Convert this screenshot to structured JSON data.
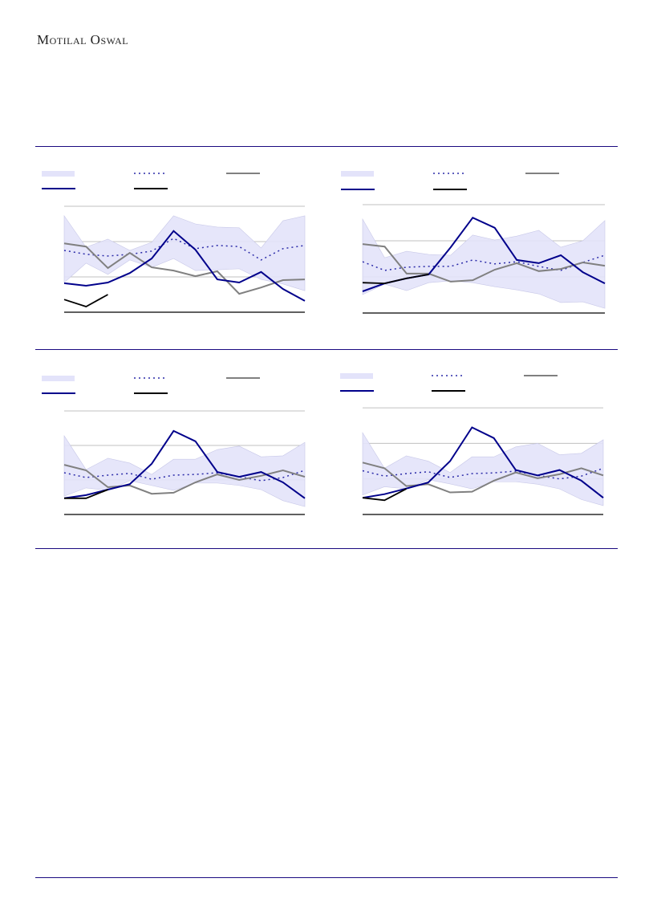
{
  "header": {
    "logo_text": "Motilal Oswal"
  },
  "colors": {
    "rule": "#1a0a80",
    "band": "#e3e3fa",
    "band_edge": "#c8c8e8",
    "navy": "#00008b",
    "dotted": "#2a2aa8",
    "gray": "#808080",
    "black": "#000000",
    "grid": "#c0c0c0"
  },
  "chart_data": [
    {
      "type": "line",
      "x": [
        1,
        2,
        3,
        4,
        5,
        6,
        7,
        8,
        9,
        10,
        11,
        12
      ],
      "ylim": [
        0,
        3
      ],
      "grid": true,
      "legend": "top",
      "band": {
        "upper": [
          2.73,
          1.84,
          2.07,
          1.75,
          1.98,
          2.73,
          2.5,
          2.41,
          2.39,
          1.82,
          2.59,
          2.73
        ],
        "lower": [
          0.84,
          1.39,
          1.07,
          1.48,
          1.27,
          1.52,
          1.18,
          1.2,
          1.23,
          0.93,
          0.8,
          0.61
        ]
      },
      "dotted": [
        1.75,
        1.64,
        1.59,
        1.64,
        1.73,
        2.09,
        1.8,
        1.89,
        1.86,
        1.48,
        1.8,
        1.89
      ],
      "gray": [
        1.95,
        1.86,
        1.25,
        1.68,
        1.27,
        1.18,
        1.02,
        1.16,
        0.52,
        0.7,
        0.91,
        0.93
      ],
      "navy": [
        0.82,
        0.75,
        0.84,
        1.11,
        1.52,
        2.3,
        1.77,
        0.93,
        0.84,
        1.14,
        0.66,
        0.32
      ],
      "black": [
        0.36,
        0.16,
        0.5
      ]
    },
    {
      "type": "line",
      "x": [
        1,
        2,
        3,
        4,
        5,
        6,
        7,
        8,
        9,
        10,
        11,
        12
      ],
      "ylim": [
        0,
        3
      ],
      "grid": true,
      "legend": "top",
      "band": {
        "upper": [
          2.6,
          1.53,
          1.71,
          1.62,
          1.6,
          2.16,
          2.02,
          2.13,
          2.29,
          1.82,
          2.0,
          2.56
        ],
        "lower": [
          0.51,
          0.8,
          0.62,
          0.84,
          0.89,
          0.84,
          0.73,
          0.64,
          0.53,
          0.29,
          0.31,
          0.13
        ]
      },
      "dotted": [
        1.42,
        1.18,
        1.27,
        1.29,
        1.29,
        1.47,
        1.36,
        1.42,
        1.29,
        1.18,
        1.4,
        1.6
      ],
      "gray": [
        1.91,
        1.84,
        1.09,
        1.09,
        0.87,
        0.91,
        1.2,
        1.38,
        1.16,
        1.22,
        1.4,
        1.31
      ],
      "navy": [
        0.6,
        0.82,
        0.96,
        1.07,
        1.82,
        2.64,
        2.36,
        1.47,
        1.38,
        1.6,
        1.13,
        0.82
      ],
      "black": [
        0.84,
        0.82,
        0.96,
        1.07
      ]
    },
    {
      "type": "line",
      "x": [
        1,
        2,
        3,
        4,
        5,
        6,
        7,
        8,
        9,
        10,
        11,
        12
      ],
      "ylim": [
        0,
        3
      ],
      "grid": true,
      "legend": "top",
      "band": {
        "upper": [
          2.28,
          1.3,
          1.63,
          1.49,
          1.16,
          1.6,
          1.6,
          1.88,
          1.98,
          1.67,
          1.7,
          2.09
        ],
        "lower": [
          0.53,
          0.77,
          0.7,
          0.98,
          0.84,
          0.7,
          0.91,
          0.91,
          0.84,
          0.72,
          0.4,
          0.23
        ]
      },
      "dotted": [
        1.21,
        1.07,
        1.14,
        1.19,
        1.02,
        1.14,
        1.16,
        1.21,
        1.09,
        0.98,
        1.07,
        1.28
      ],
      "gray": [
        1.44,
        1.28,
        0.79,
        0.84,
        0.6,
        0.63,
        0.93,
        1.16,
        1.0,
        1.12,
        1.28,
        1.09
      ],
      "navy": [
        0.47,
        0.56,
        0.72,
        0.88,
        1.47,
        2.42,
        2.12,
        1.23,
        1.09,
        1.23,
        0.93,
        0.47
      ],
      "black": [
        0.47,
        0.47,
        0.72
      ]
    },
    {
      "type": "line",
      "x": [
        1,
        2,
        3,
        4,
        5,
        6,
        7,
        8,
        9,
        10,
        11,
        12
      ],
      "ylim": [
        0,
        3
      ],
      "grid": true,
      "legend": "top",
      "band": {
        "upper": [
          2.3,
          1.3,
          1.65,
          1.5,
          1.18,
          1.62,
          1.62,
          1.9,
          2.0,
          1.68,
          1.72,
          2.1
        ],
        "lower": [
          0.55,
          0.78,
          0.72,
          0.98,
          0.86,
          0.72,
          0.92,
          0.92,
          0.85,
          0.72,
          0.42,
          0.25
        ]
      },
      "dotted": [
        1.23,
        1.08,
        1.15,
        1.2,
        1.04,
        1.15,
        1.17,
        1.22,
        1.1,
        1.0,
        1.08,
        1.3
      ],
      "gray": [
        1.46,
        1.3,
        0.8,
        0.85,
        0.62,
        0.64,
        0.95,
        1.18,
        1.02,
        1.13,
        1.3,
        1.1
      ],
      "navy": [
        0.47,
        0.57,
        0.73,
        0.9,
        1.5,
        2.45,
        2.15,
        1.25,
        1.1,
        1.25,
        0.95,
        0.47
      ],
      "black": [
        0.47,
        0.4,
        0.72
      ]
    }
  ]
}
